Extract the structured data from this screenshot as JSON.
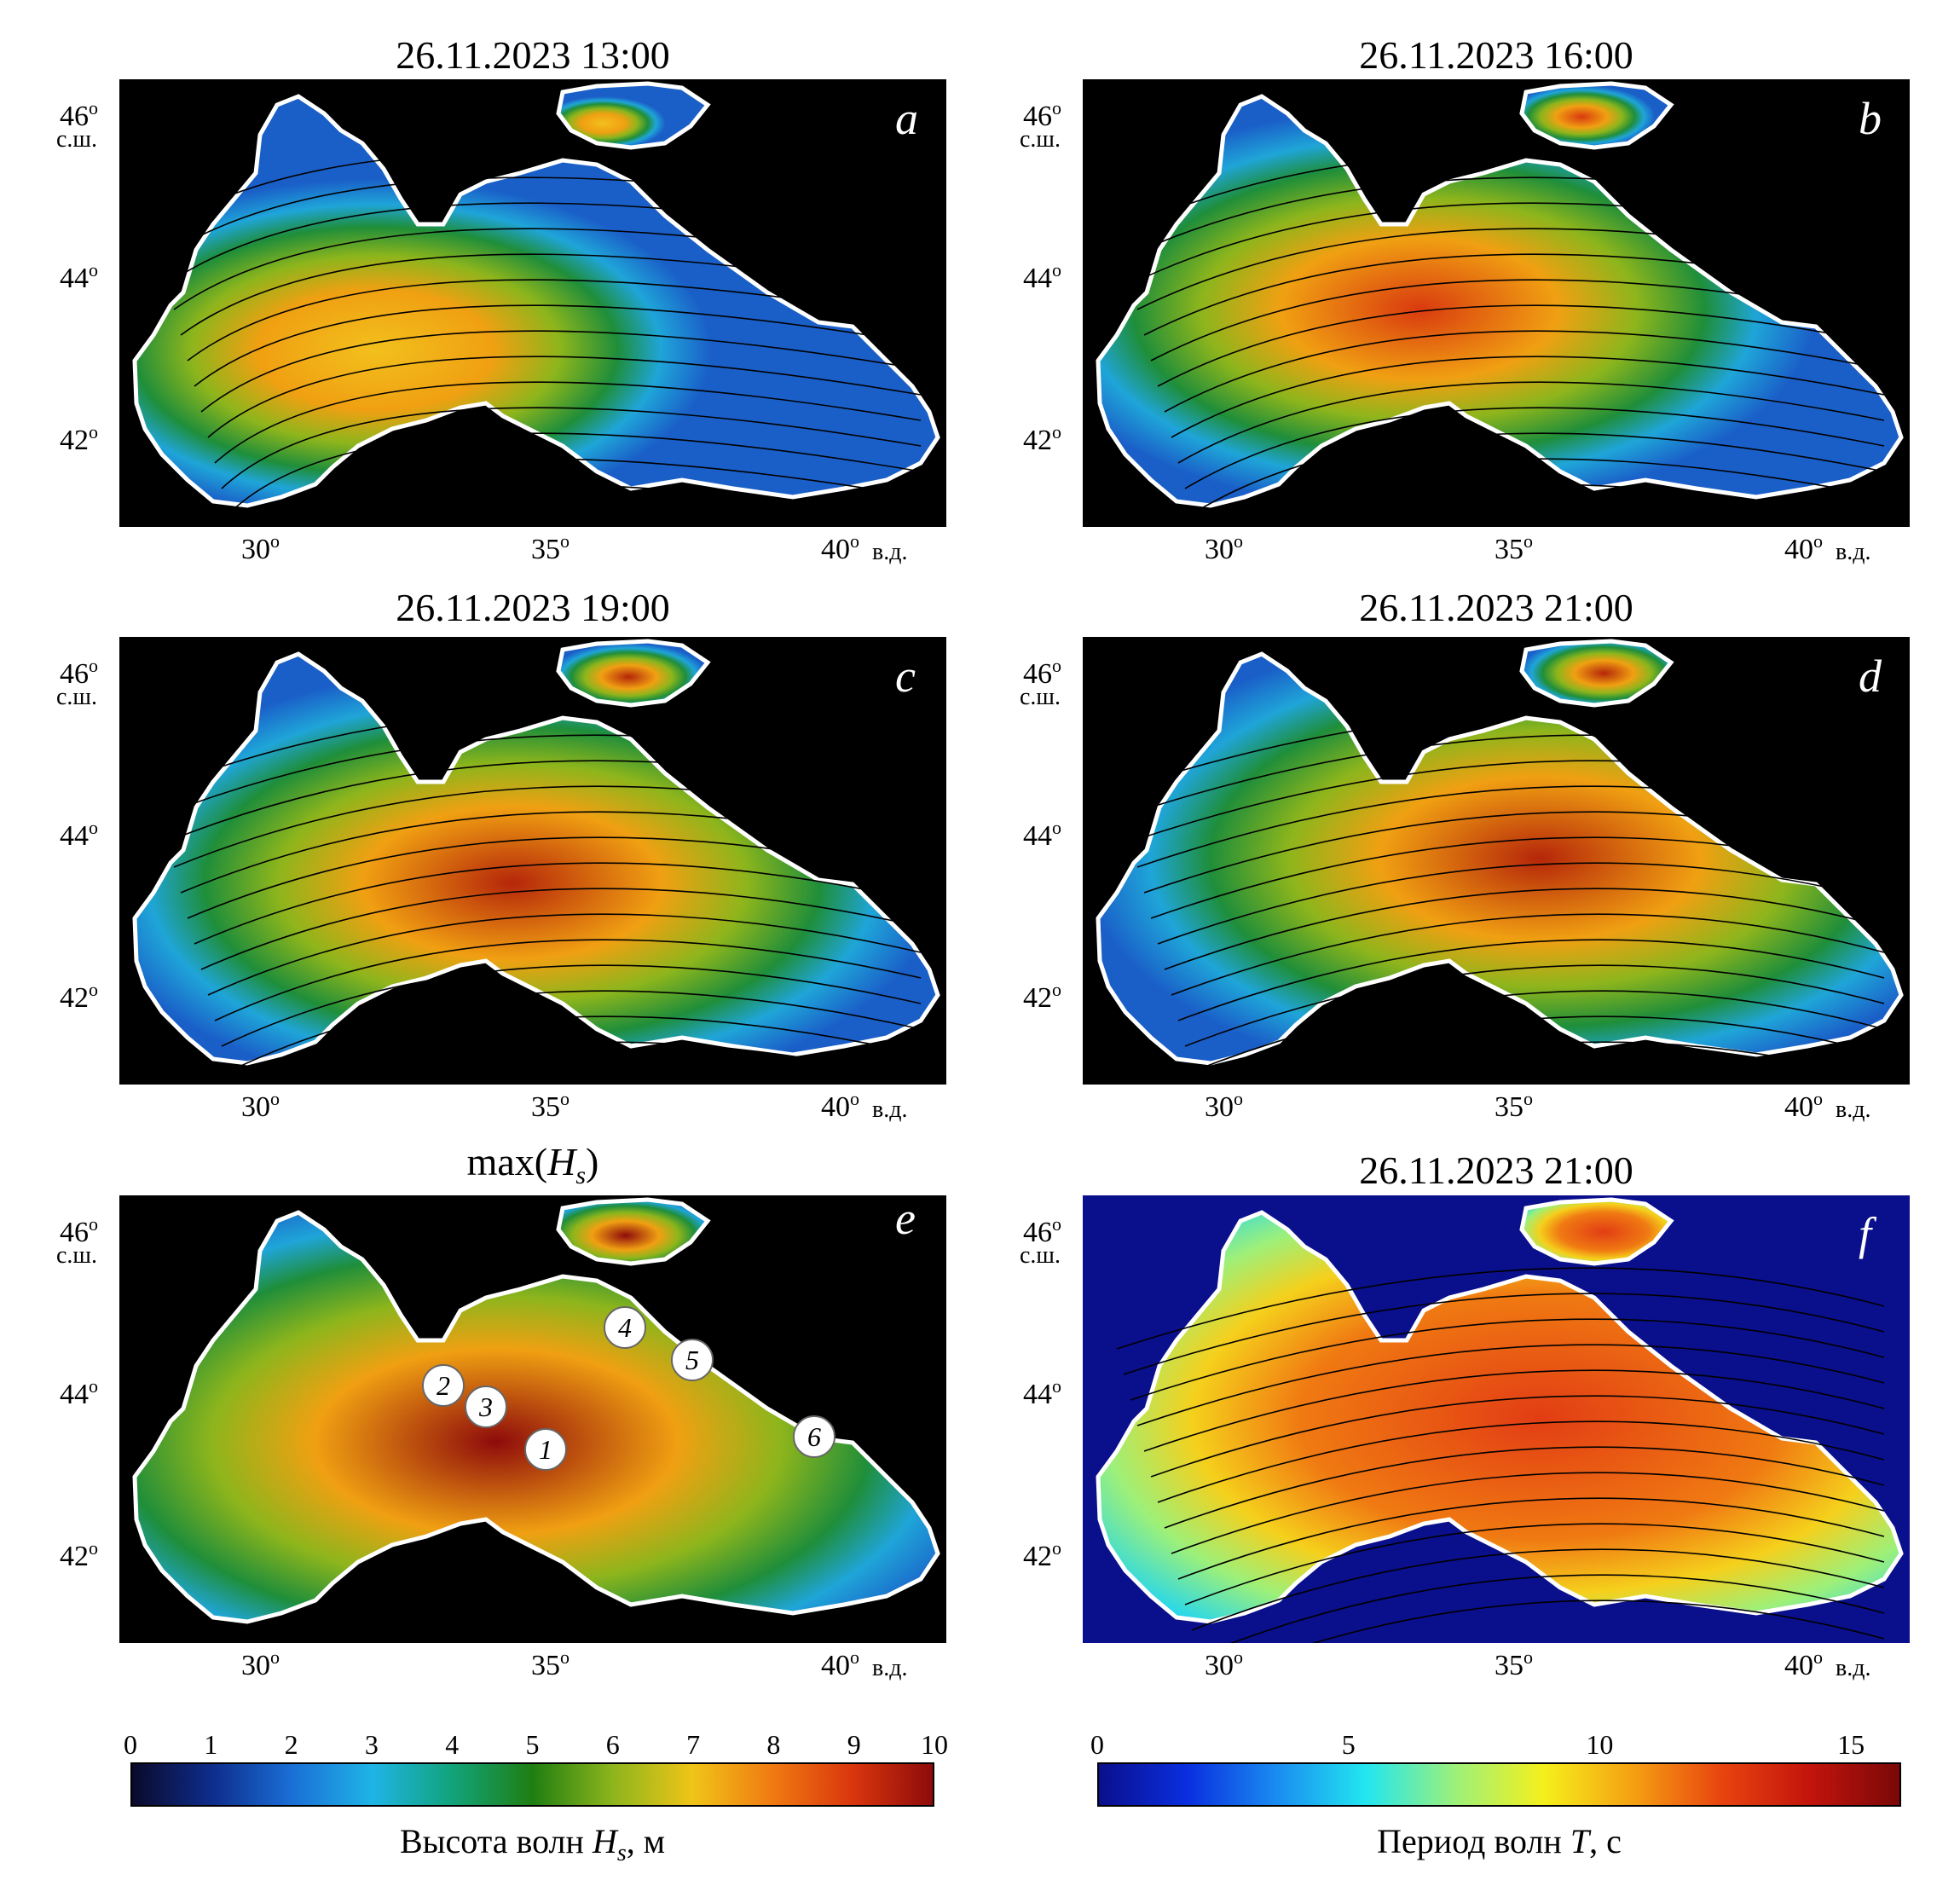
{
  "panels": [
    {
      "id": "a",
      "letter": "a",
      "title": "26.11.2023 13:00",
      "variable": "wave height",
      "peak_color": "#f2c01c"
    },
    {
      "id": "b",
      "letter": "b",
      "title": "26.11.2023 16:00",
      "variable": "wave height",
      "peak_color": "#d93a0f"
    },
    {
      "id": "c",
      "letter": "c",
      "title": "26.11.2023 19:00",
      "variable": "wave height",
      "peak_color": "#b5260a"
    },
    {
      "id": "d",
      "letter": "d",
      "title": "26.11.2023 21:00",
      "variable": "wave height",
      "peak_color": "#b5260a"
    },
    {
      "id": "e",
      "letter": "e",
      "title": "max(Hs)",
      "title_main": "max(",
      "title_var": "H",
      "title_sub": "s",
      "title_end": ")",
      "variable": "maximum wave height",
      "peak_color": "#8e0b0b"
    },
    {
      "id": "f",
      "letter": "f",
      "title": "26.11.2023 21:00",
      "variable": "wave period",
      "peak_color": "#e23d14"
    }
  ],
  "axes": {
    "lat_ticks": [
      "46",
      "44",
      "42"
    ],
    "lat_unit": "с.ш.",
    "lon_ticks": [
      "30",
      "35",
      "40"
    ],
    "lon_unit": "в.д.",
    "degree": "o"
  },
  "stations": [
    "1",
    "2",
    "3",
    "4",
    "5",
    "6"
  ],
  "colorbar_height": {
    "label_main": "Высота волн ",
    "label_var": "H",
    "label_sub": "s",
    "label_end": ", м",
    "ticks": [
      "0",
      "1",
      "2",
      "3",
      "4",
      "5",
      "6",
      "7",
      "8",
      "9",
      "10"
    ],
    "range": [
      0,
      10
    ],
    "colors": [
      "#0a0a2a",
      "#0e2d8c",
      "#1a6fd6",
      "#1fb4e6",
      "#12a37a",
      "#1f7e12",
      "#8db51c",
      "#f0c418",
      "#f07a12",
      "#d9360d",
      "#8e0b0b"
    ]
  },
  "colorbar_period": {
    "label_main": "Период волн ",
    "label_var": "T",
    "label_end": ", с",
    "ticks": [
      "0",
      "5",
      "10",
      "15"
    ],
    "range": [
      0,
      16
    ],
    "colors": [
      "#0a0f8c",
      "#0a2fe0",
      "#1a8cf0",
      "#22e6f0",
      "#9cf07a",
      "#f5f01c",
      "#f5a012",
      "#e8440f",
      "#c2140c",
      "#7a0808"
    ]
  },
  "colors": {
    "land": "#000000",
    "coast": "#ffffff",
    "sea_low": "#1a6fd6",
    "sea_mid": "#1f8e3a",
    "streamline": "#000000"
  }
}
